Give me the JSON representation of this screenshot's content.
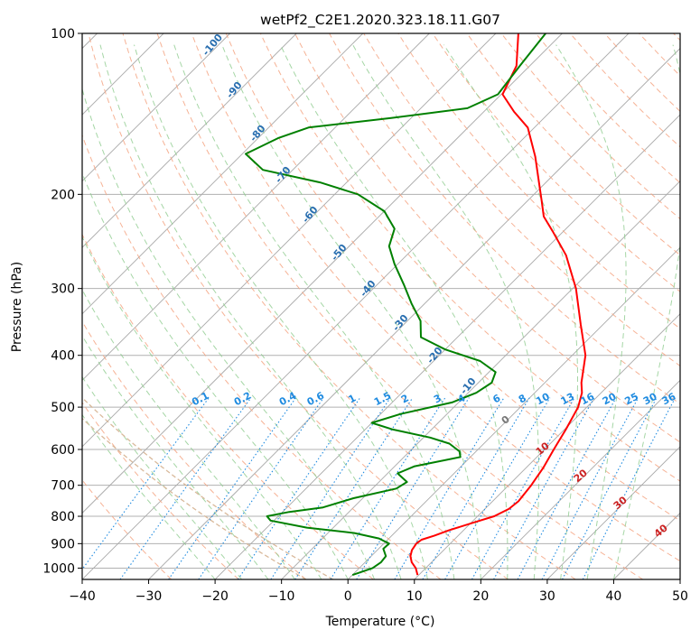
{
  "chart_data": {
    "type": "line",
    "subtype": "skew-t log-p",
    "title": "wetPf2_C2E1.2020.323.18.11.G07",
    "xlabel": "Temperature (°C)",
    "ylabel": "Pressure (hPa)",
    "xlim": [
      -40,
      50
    ],
    "ylim": [
      1050,
      100
    ],
    "y_scale": "log",
    "x_ticks": [
      "−40",
      "−30",
      "−20",
      "−10",
      "0",
      "10",
      "20",
      "30",
      "40",
      "50"
    ],
    "y_ticks": [
      "100",
      "200",
      "300",
      "400",
      "500",
      "600",
      "700",
      "800",
      "900",
      "1000"
    ],
    "grid": true,
    "colors": {
      "temperature": "#ff0000",
      "dewpoint": "#008000",
      "isotherm": "#9a9a9a",
      "dry_adiabat": "#f4a582",
      "moist_adiabat": "#8fcc8f",
      "mixing_ratio": "#1f8be0",
      "theta_e": "#d9b99b",
      "dry_adiabat_labels": "#2a6fb0",
      "cape_labels": "#cc2222",
      "zero_label": "#777777"
    },
    "series": [
      {
        "points": [
          {
            "p": 1030,
            "t": 9.8
          },
          {
            "p": 1000,
            "t": 8.5
          },
          {
            "p": 975,
            "t": 7.0
          },
          {
            "p": 950,
            "t": 5.9
          },
          {
            "p": 925,
            "t": 5.2
          },
          {
            "p": 900,
            "t": 4.9
          },
          {
            "p": 885,
            "t": 5.1
          },
          {
            "p": 870,
            "t": 6.4
          },
          {
            "p": 850,
            "t": 7.8
          },
          {
            "p": 820,
            "t": 10.5
          },
          {
            "p": 800,
            "t": 12.5
          },
          {
            "p": 775,
            "t": 13.6
          },
          {
            "p": 750,
            "t": 13.9
          },
          {
            "p": 700,
            "t": 13.4
          },
          {
            "p": 650,
            "t": 12.6
          },
          {
            "p": 600,
            "t": 11.4
          },
          {
            "p": 550,
            "t": 10.2
          },
          {
            "p": 500,
            "t": 8.7
          },
          {
            "p": 470,
            "t": 7.1
          },
          {
            "p": 450,
            "t": 5.5
          },
          {
            "p": 400,
            "t": 2.0
          },
          {
            "p": 350,
            "t": -3.4
          },
          {
            "p": 300,
            "t": -9.5
          },
          {
            "p": 260,
            "t": -16.0
          },
          {
            "p": 235,
            "t": -21.5
          },
          {
            "p": 220,
            "t": -25.2
          },
          {
            "p": 205,
            "t": -28.0
          },
          {
            "p": 195,
            "t": -30.0
          },
          {
            "p": 170,
            "t": -35.5
          },
          {
            "p": 150,
            "t": -41.0
          },
          {
            "p": 140,
            "t": -45.5
          },
          {
            "p": 130,
            "t": -49.8
          },
          {
            "p": 115,
            "t": -52.0
          },
          {
            "p": 100,
            "t": -56.6
          }
        ]
      },
      {
        "points": [
          {
            "p": 1030,
            "t": 0.0
          },
          {
            "p": 1000,
            "t": 2.0
          },
          {
            "p": 975,
            "t": 2.4
          },
          {
            "p": 950,
            "t": 2.2
          },
          {
            "p": 920,
            "t": 0.7
          },
          {
            "p": 900,
            "t": 0.8
          },
          {
            "p": 880,
            "t": -1.5
          },
          {
            "p": 860,
            "t": -6.0
          },
          {
            "p": 840,
            "t": -14.0
          },
          {
            "p": 815,
            "t": -20.5
          },
          {
            "p": 800,
            "t": -21.7
          },
          {
            "p": 785,
            "t": -19.0
          },
          {
            "p": 770,
            "t": -14.6
          },
          {
            "p": 740,
            "t": -11.4
          },
          {
            "p": 710,
            "t": -6.4
          },
          {
            "p": 690,
            "t": -5.8
          },
          {
            "p": 665,
            "t": -8.5
          },
          {
            "p": 645,
            "t": -7.0
          },
          {
            "p": 620,
            "t": -1.5
          },
          {
            "p": 605,
            "t": -2.5
          },
          {
            "p": 585,
            "t": -5.2
          },
          {
            "p": 570,
            "t": -9.0
          },
          {
            "p": 550,
            "t": -16.0
          },
          {
            "p": 535,
            "t": -20.0
          },
          {
            "p": 515,
            "t": -17.0
          },
          {
            "p": 490,
            "t": -11.0
          },
          {
            "p": 470,
            "t": -8.8
          },
          {
            "p": 450,
            "t": -8.0
          },
          {
            "p": 430,
            "t": -9.0
          },
          {
            "p": 410,
            "t": -13.0
          },
          {
            "p": 390,
            "t": -20.0
          },
          {
            "p": 370,
            "t": -25.5
          },
          {
            "p": 345,
            "t": -28.0
          },
          {
            "p": 320,
            "t": -32.0
          },
          {
            "p": 295,
            "t": -36.0
          },
          {
            "p": 270,
            "t": -40.5
          },
          {
            "p": 250,
            "t": -44.0
          },
          {
            "p": 232,
            "t": -45.8
          },
          {
            "p": 215,
            "t": -50.0
          },
          {
            "p": 200,
            "t": -56.5
          },
          {
            "p": 190,
            "t": -64.0
          },
          {
            "p": 180,
            "t": -74.5
          },
          {
            "p": 168,
            "t": -79.5
          },
          {
            "p": 157,
            "t": -77.0
          },
          {
            "p": 150,
            "t": -74.0
          },
          {
            "p": 144,
            "t": -63.0
          },
          {
            "p": 138,
            "t": -53.0
          },
          {
            "p": 130,
            "t": -50.5
          },
          {
            "p": 115,
            "t": -51.5
          },
          {
            "p": 100,
            "t": -52.5
          }
        ]
      }
    ],
    "dry_adiabat_labels": [
      "-100",
      "-90",
      "-80",
      "-70",
      "-60",
      "-50",
      "-40",
      "-30",
      "-20",
      "-10"
    ],
    "mixing_ratio_labels": [
      "0.1",
      "0.2",
      "0.4",
      "0.6",
      "1",
      "1.5",
      "2",
      "3",
      "4",
      "6",
      "8",
      "10",
      "13",
      "16",
      "20",
      "25",
      "30",
      "36"
    ],
    "cape_labels": [
      "10",
      "20",
      "30",
      "40"
    ],
    "zero_label": "0"
  }
}
